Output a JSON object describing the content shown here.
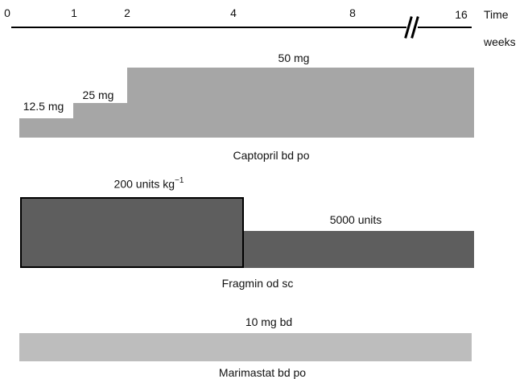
{
  "axis": {
    "ticks": [
      "0",
      "1",
      "2",
      "4",
      "8",
      "16"
    ],
    "label_line1": "Time",
    "label_line2": "weeks"
  },
  "captopril": {
    "drug_label": "Captopril bd po",
    "dose_1": "12.5 mg",
    "dose_2": "25 mg",
    "dose_3": "50 mg"
  },
  "fragmin": {
    "drug_label": "Fragmin od sc",
    "dose_1_text": "200 units kg",
    "dose_1_sup": "−1",
    "dose_2": "5000 units"
  },
  "marimastat": {
    "drug_label": "Marimastat bd po",
    "dose": "10 mg bd"
  },
  "colors": {
    "captopril_bar": "#a6a6a6",
    "fragmin_bar": "#5e5e5e",
    "marimastat_bar": "#bdbdbd"
  }
}
